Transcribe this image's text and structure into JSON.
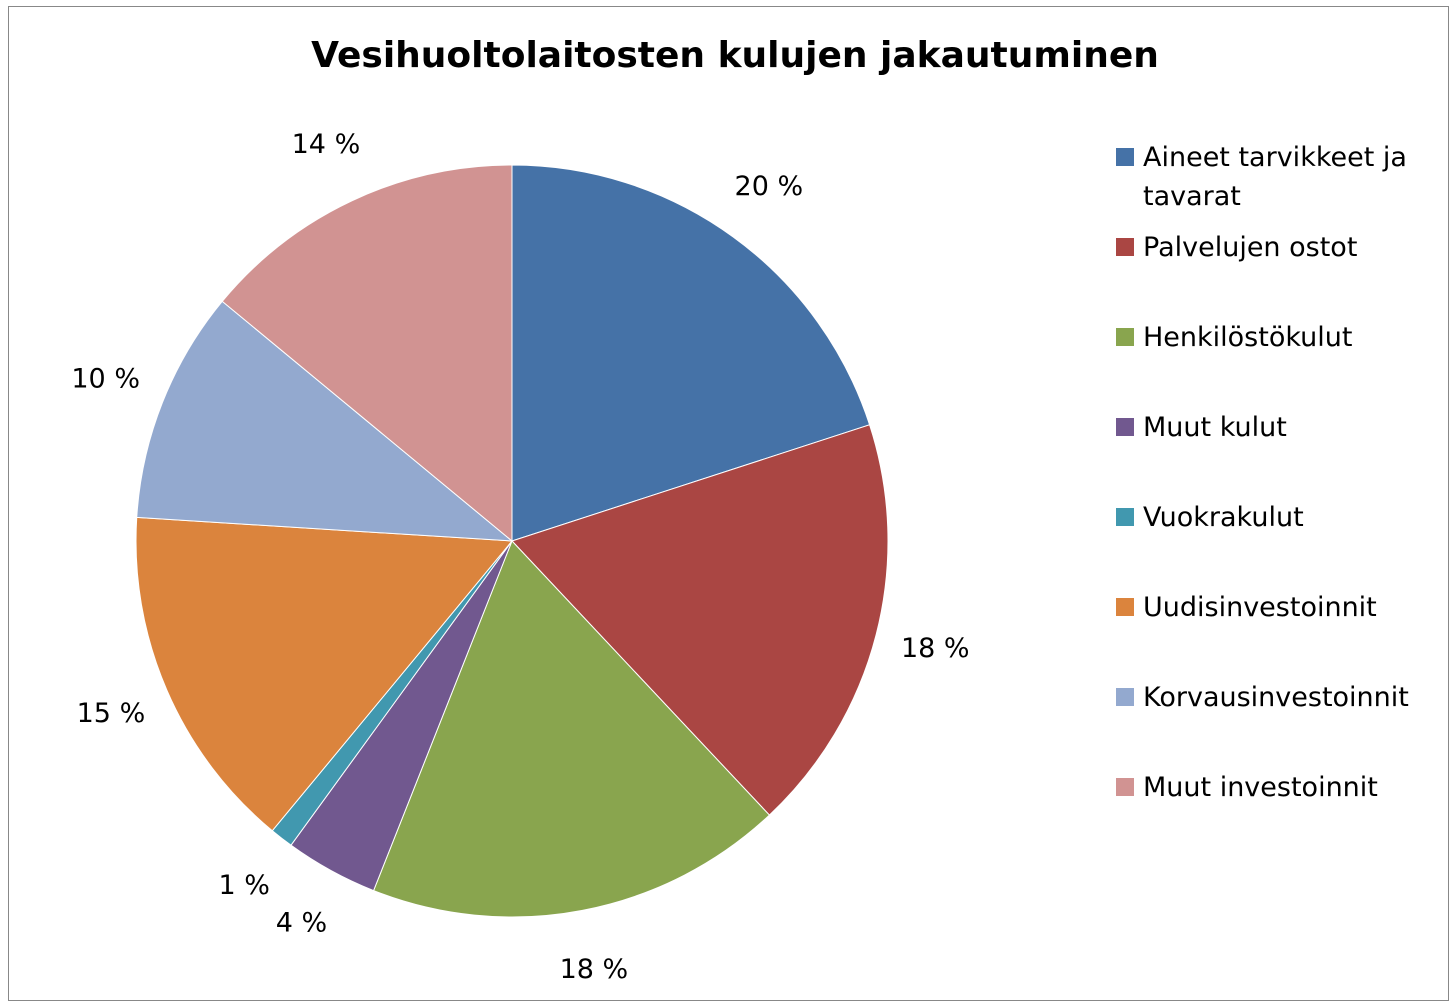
{
  "chart_data": {
    "type": "pie",
    "title": "Vesihuoltolaitosten kulujen jakautuminen",
    "categories": [
      "Aineet tarvikkeet ja tavarat",
      "Palvelujen ostot",
      "Henkilöstökulut",
      "Muut kulut",
      "Vuokrakulut",
      "Uudisinvestoinnit",
      "Korvausinvestoinnit",
      "Muut investoinnit"
    ],
    "values": [
      20,
      18,
      18,
      4,
      1,
      15,
      10,
      14
    ],
    "value_labels": [
      "20 %",
      "18 %",
      "18 %",
      "4 %",
      "1 %",
      "15 %",
      "10 %",
      "14 %"
    ],
    "colors": [
      "#4572a7",
      "#aa4643",
      "#89a54e",
      "#71588f",
      "#4198af",
      "#db843d",
      "#93a9cf",
      "#d19392"
    ],
    "legend": "right"
  }
}
